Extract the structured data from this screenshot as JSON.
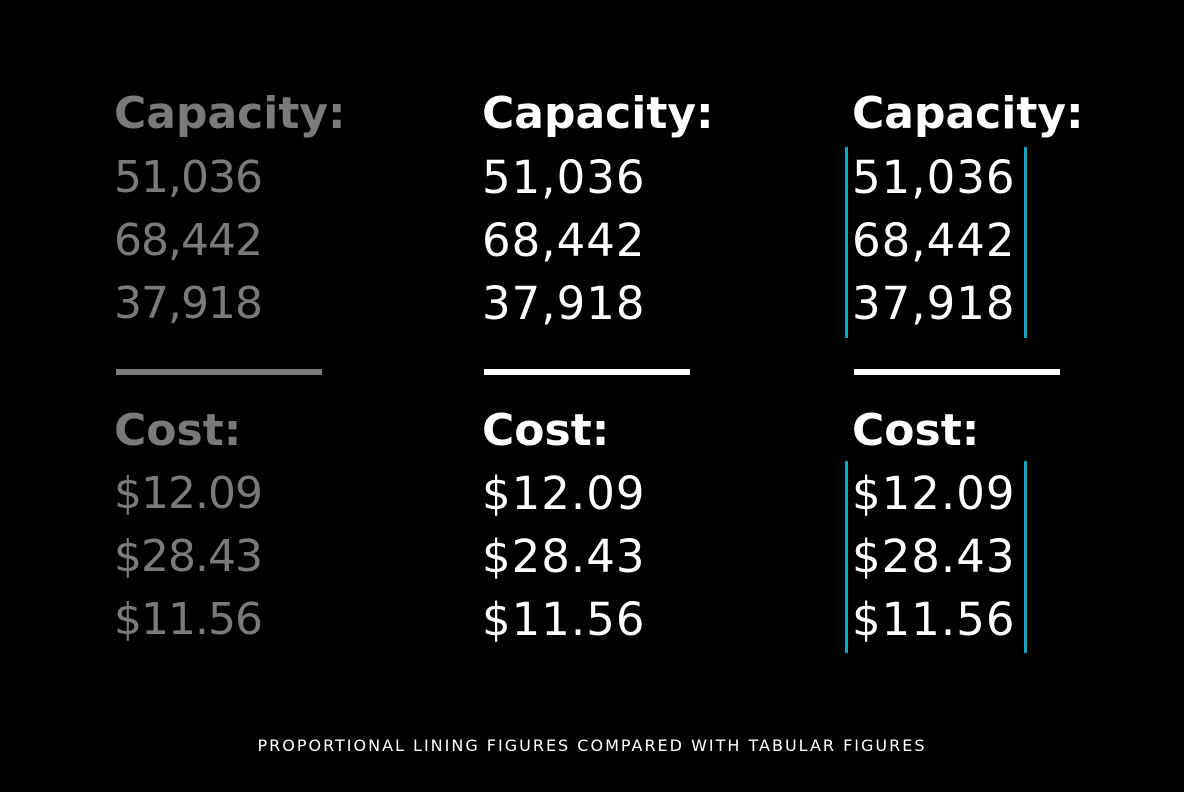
{
  "colors": {
    "background": "#000000",
    "muted": "#7a7a7a",
    "bright": "#ffffff",
    "guide": "#16a6c2"
  },
  "columns": [
    {
      "style": "proportional",
      "capacity_label": "Capacity:",
      "capacity_values": [
        "51,036",
        "68,442",
        "37,918"
      ],
      "cost_label": "Cost:",
      "cost_values": [
        "$12.09",
        "$28.43",
        "$11.56"
      ]
    },
    {
      "style": "tabular",
      "capacity_label": "Capacity:",
      "capacity_values": [
        "51,036",
        "68,442",
        "37,918"
      ],
      "cost_label": "Cost:",
      "cost_values": [
        "$12.09",
        "$28.43",
        "$11.56"
      ]
    },
    {
      "style": "tabular-with-guides",
      "capacity_label": "Capacity:",
      "capacity_values": [
        "51,036",
        "68,442",
        "37,918"
      ],
      "cost_label": "Cost:",
      "cost_values": [
        "$12.09",
        "$28.43",
        "$11.56"
      ]
    }
  ],
  "caption": "PROPORTIONAL LINING FIGURES COMPARED WITH TABULAR FIGURES"
}
